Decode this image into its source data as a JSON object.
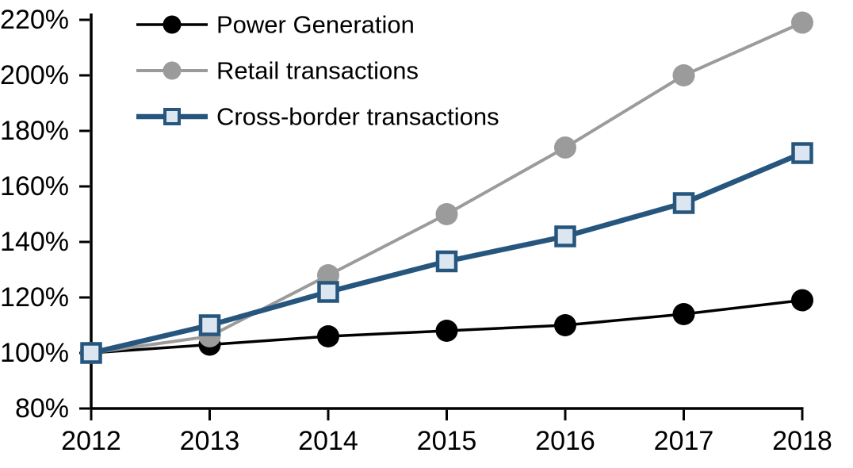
{
  "chart_data": {
    "type": "line",
    "title": "",
    "xlabel": "",
    "ylabel": "",
    "x": [
      2012,
      2013,
      2014,
      2015,
      2016,
      2017,
      2018
    ],
    "xtick_labels": [
      "2012",
      "2013",
      "2014",
      "2015",
      "2016",
      "2017",
      "2018"
    ],
    "series": [
      {
        "name": "Power Generation",
        "marker": "circle",
        "color": "#000000",
        "marker_fill": "#000000",
        "values": [
          100,
          103,
          106,
          108,
          110,
          114,
          119
        ]
      },
      {
        "name": "Retail transactions",
        "marker": "circle",
        "color": "#9B9B9B",
        "marker_fill": "#9B9B9B",
        "values": [
          100,
          106,
          128,
          150,
          174,
          200,
          219
        ]
      },
      {
        "name": "Cross-border transactions",
        "marker": "square",
        "color": "#26567E",
        "marker_fill": "#DCE6F1",
        "values": [
          100,
          110,
          122,
          133,
          142,
          154,
          172
        ]
      }
    ],
    "ylim": [
      80,
      220
    ],
    "yticks": [
      80,
      100,
      120,
      140,
      160,
      180,
      200,
      220
    ],
    "ytick_labels": [
      "80%",
      "100%",
      "120%",
      "140%",
      "160%",
      "180%",
      "200%",
      "220%"
    ],
    "grid": false,
    "legend_position": "top-left",
    "background_color": "#FFFFFF",
    "axis_color": "#000000"
  }
}
